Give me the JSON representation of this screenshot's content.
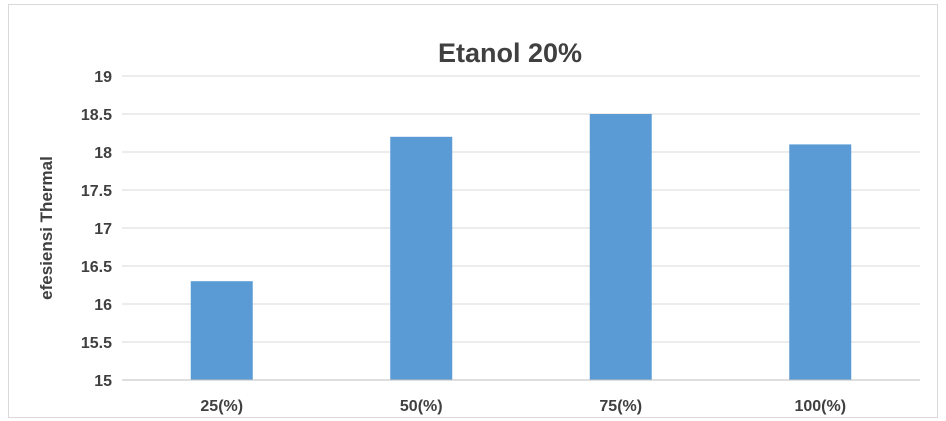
{
  "chart_data": {
    "type": "bar",
    "title": "Etanol 20%",
    "xlabel": "",
    "ylabel": "efesiensi Thermal",
    "categories": [
      "25(%)",
      "50(%)",
      "75(%)",
      "100(%)"
    ],
    "values": [
      16.3,
      18.2,
      18.5,
      18.1
    ],
    "ylim": [
      15,
      19
    ],
    "yticks": [
      "15",
      "15.5",
      "16",
      "16.5",
      "17",
      "17.5",
      "18",
      "18.5",
      "19"
    ],
    "grid": true,
    "legend": "none",
    "bar_color": "#5b9bd5"
  }
}
